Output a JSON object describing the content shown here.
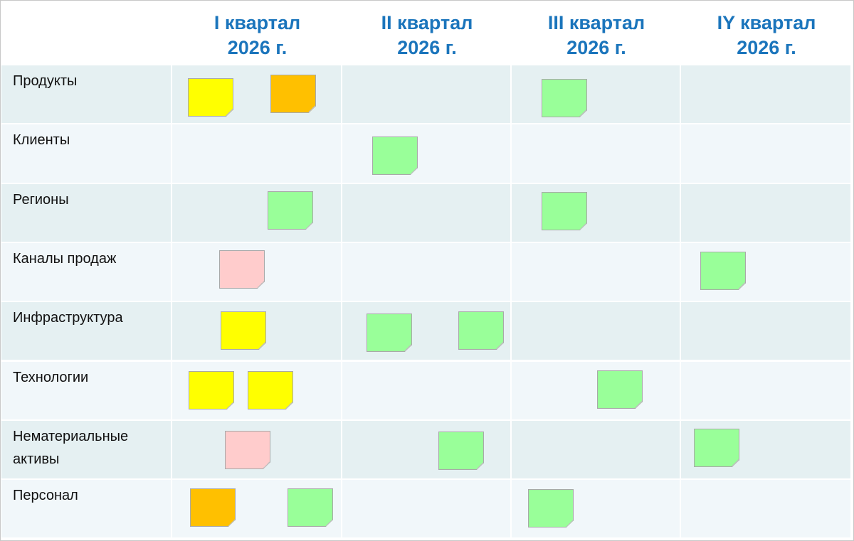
{
  "header": {
    "columns": [
      "I квартал 2026 г.",
      "II квартал 2026 г.",
      "III квартал 2026 г.",
      "IY квартал 2026 г."
    ]
  },
  "rows": [
    "Продукты",
    "Клиенты",
    "Регионы",
    "Каналы продаж",
    "Инфраструктура",
    "Технологии",
    "Нематериальные активы",
    "Персонал"
  ]
}
